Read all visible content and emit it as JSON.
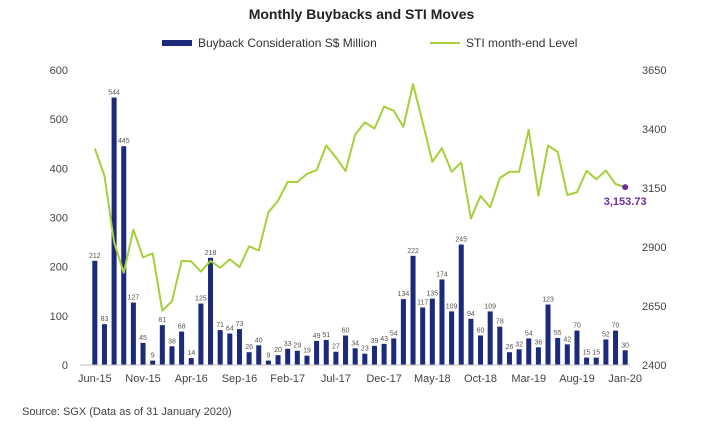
{
  "title": "Monthly Buybacks and STI Moves",
  "source": "Source: SGX (Data as of 31 January 2020)",
  "colors": {
    "bar": "#1b2a7a",
    "line": "#a6cf3a",
    "annotation": "#6b2fa0"
  },
  "chart_data": {
    "type": "bar",
    "title": "Monthly Buybacks and STI Moves",
    "x_tick_labels": [
      "Jun-15",
      "Nov-15",
      "Apr-16",
      "Sep-16",
      "Feb-17",
      "Jul-17",
      "Dec-17",
      "May-18",
      "Oct-18",
      "Mar-19",
      "Aug-19",
      "Jan-20"
    ],
    "left_axis": {
      "ylim": [
        0,
        600
      ],
      "ticks": [
        "0",
        "100",
        "200",
        "300",
        "400",
        "500",
        "600"
      ]
    },
    "right_axis": {
      "ylim": [
        2400,
        3650
      ],
      "ticks": [
        "2400",
        "2650",
        "2900",
        "3150",
        "3400",
        "3650"
      ]
    },
    "grid": false,
    "legend_position": "top",
    "series": [
      {
        "name": "Buyback Consideration S$ Million",
        "type": "bar",
        "axis": "left",
        "values": [
          212,
          83,
          544,
          445,
          127,
          45,
          9,
          81,
          38,
          68,
          14,
          125,
          218,
          71,
          64,
          73,
          26,
          40,
          9,
          20,
          33,
          29,
          19,
          49,
          51,
          27,
          60,
          34,
          23,
          39,
          43,
          54,
          134,
          222,
          117,
          135,
          174,
          109,
          245,
          94,
          60,
          109,
          78,
          26,
          32,
          54,
          36,
          123,
          55,
          42,
          70,
          15,
          15,
          52,
          70,
          30
        ],
        "labels": [
          "212",
          "83",
          "544",
          "445",
          "127",
          "45",
          "9",
          "81",
          "38",
          "68",
          "14",
          "125",
          "218",
          "71",
          "64",
          "73",
          "26",
          "40",
          "9",
          "20",
          "33",
          "29",
          "19",
          "49",
          "51",
          "27",
          "60",
          "34",
          "23",
          "39",
          "43",
          "54",
          "134",
          "222",
          "117",
          "135",
          "174",
          "109",
          "245",
          "94",
          "60",
          "109",
          "78",
          "26",
          "32",
          "54",
          "36",
          "123",
          "55",
          "42",
          "70",
          "15",
          "15",
          "52",
          "70",
          "30"
        ]
      },
      {
        "name": "STI month-end Level",
        "type": "line",
        "axis": "right",
        "values": [
          3317,
          3202,
          2920,
          2791,
          2974,
          2856,
          2873,
          2630,
          2670,
          2841,
          2839,
          2796,
          2841,
          2812,
          2848,
          2815,
          2903,
          2885,
          3047,
          3096,
          3176,
          3175,
          3210,
          3226,
          3330,
          3280,
          3222,
          3376,
          3428,
          3402,
          3495,
          3477,
          3409,
          3590,
          3428,
          3261,
          3319,
          3219,
          3258,
          3020,
          3117,
          3068,
          3192,
          3219,
          3219,
          3397,
          3118,
          3330,
          3303,
          3120,
          3132,
          3223,
          3187,
          3224,
          3167,
          3153.73
        ]
      }
    ],
    "last_point_label": "3,153.73"
  }
}
